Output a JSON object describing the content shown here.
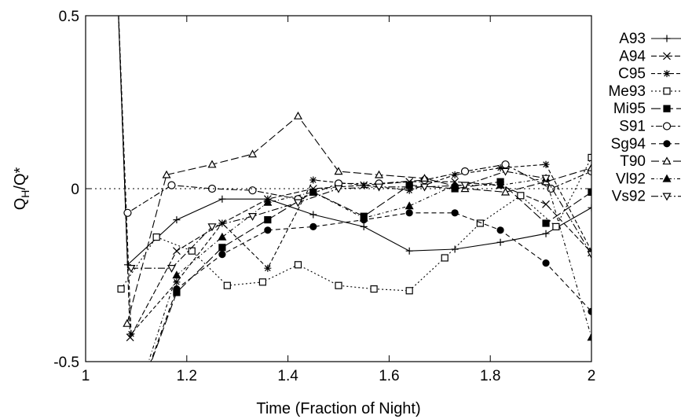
{
  "chart_data": {
    "type": "line",
    "xlabel": "Time (Fraction of Night)",
    "ylabel_main": "Q",
    "ylabel_sub": "H",
    "ylabel_rest": "/Q*",
    "xlim": [
      1,
      2
    ],
    "ylim": [
      -0.5,
      0.5
    ],
    "x_ticks": [
      1,
      1.2,
      1.4,
      1.6,
      1.8,
      2
    ],
    "x_tick_labels": [
      "1",
      "1.2",
      "1.4",
      "1.6",
      "1.8",
      "2"
    ],
    "y_ticks": [
      -0.5,
      0,
      0.5
    ],
    "y_tick_labels": [
      "-0.5",
      "0",
      "0.5"
    ],
    "reference_line_y": 0,
    "legend_position": "right",
    "grid": false,
    "series": [
      {
        "name": "A93",
        "marker": "plus",
        "dash": "",
        "points": [
          [
            1.06,
            0.7
          ],
          [
            1.083,
            -0.22
          ],
          [
            1.18,
            -0.09
          ],
          [
            1.27,
            -0.03
          ],
          [
            1.36,
            -0.03
          ],
          [
            1.45,
            -0.075
          ],
          [
            1.55,
            -0.11
          ],
          [
            1.64,
            -0.18
          ],
          [
            1.73,
            -0.175
          ],
          [
            1.82,
            -0.155
          ],
          [
            1.91,
            -0.13
          ],
          [
            2.0,
            -0.055
          ]
        ]
      },
      {
        "name": "A94",
        "marker": "x",
        "dash": "7 3",
        "points": [
          [
            1.06,
            0.7
          ],
          [
            1.088,
            -0.43
          ],
          [
            1.18,
            -0.18
          ],
          [
            1.27,
            -0.1
          ],
          [
            1.36,
            -0.03
          ],
          [
            1.45,
            0.0
          ],
          [
            1.55,
            0.01
          ],
          [
            1.64,
            0.02
          ],
          [
            1.73,
            0.02
          ],
          [
            1.82,
            0.01
          ],
          [
            1.91,
            -0.045
          ],
          [
            2.0,
            -0.185
          ]
        ]
      },
      {
        "name": "C95",
        "marker": "star",
        "dash": "5 3",
        "points": [
          [
            1.06,
            0.7
          ],
          [
            1.09,
            -0.42
          ],
          [
            1.18,
            -0.27
          ],
          [
            1.27,
            -0.1
          ],
          [
            1.36,
            -0.23
          ],
          [
            1.45,
            0.025
          ],
          [
            1.55,
            0.01
          ],
          [
            1.64,
            -0.005
          ],
          [
            1.73,
            0.04
          ],
          [
            1.82,
            0.06
          ],
          [
            1.91,
            0.07
          ],
          [
            2.0,
            -0.18
          ]
        ]
      },
      {
        "name": "Me93",
        "marker": "square-open",
        "dash": "2 3",
        "points": [
          [
            1.07,
            -0.29
          ],
          [
            1.14,
            -0.14
          ],
          [
            1.21,
            -0.18
          ],
          [
            1.28,
            -0.28
          ],
          [
            1.35,
            -0.27
          ],
          [
            1.42,
            -0.22
          ],
          [
            1.5,
            -0.28
          ],
          [
            1.57,
            -0.29
          ],
          [
            1.64,
            -0.295
          ],
          [
            1.71,
            -0.2
          ],
          [
            1.78,
            -0.1
          ],
          [
            1.86,
            -0.02
          ],
          [
            1.93,
            -0.11
          ],
          [
            2.0,
            0.09
          ]
        ]
      },
      {
        "name": "Mi95",
        "marker": "square-filled",
        "dash": "12 4",
        "points": [
          [
            1.08,
            -0.7
          ],
          [
            1.18,
            -0.3
          ],
          [
            1.27,
            -0.17
          ],
          [
            1.36,
            -0.09
          ],
          [
            1.45,
            -0.01
          ],
          [
            1.55,
            -0.08
          ],
          [
            1.64,
            0.01
          ],
          [
            1.73,
            0.0
          ],
          [
            1.82,
            0.02
          ],
          [
            1.91,
            -0.1
          ],
          [
            2.0,
            -0.01
          ]
        ]
      },
      {
        "name": "S91",
        "marker": "circle-open",
        "dash": "3 3 8 3",
        "points": [
          [
            1.083,
            -0.07
          ],
          [
            1.17,
            0.01
          ],
          [
            1.25,
            0.0
          ],
          [
            1.33,
            -0.005
          ],
          [
            1.42,
            -0.03
          ],
          [
            1.5,
            0.015
          ],
          [
            1.58,
            0.015
          ],
          [
            1.67,
            0.025
          ],
          [
            1.75,
            0.05
          ],
          [
            1.83,
            0.07
          ],
          [
            1.92,
            0.0
          ],
          [
            2.0,
            0.05
          ]
        ]
      },
      {
        "name": "Sg94",
        "marker": "circle-filled",
        "dash": "6 4",
        "points": [
          [
            1.08,
            -0.7
          ],
          [
            1.18,
            -0.29
          ],
          [
            1.27,
            -0.19
          ],
          [
            1.36,
            -0.12
          ],
          [
            1.45,
            -0.11
          ],
          [
            1.55,
            -0.09
          ],
          [
            1.64,
            -0.07
          ],
          [
            1.73,
            -0.07
          ],
          [
            1.82,
            -0.12
          ],
          [
            1.91,
            -0.215
          ],
          [
            2.0,
            -0.355
          ]
        ]
      },
      {
        "name": "T90",
        "marker": "triangle-open",
        "dash": "10 4",
        "points": [
          [
            1.082,
            -0.39
          ],
          [
            1.16,
            0.04
          ],
          [
            1.25,
            0.07
          ],
          [
            1.33,
            0.1
          ],
          [
            1.42,
            0.21
          ],
          [
            1.5,
            0.05
          ],
          [
            1.58,
            0.04
          ],
          [
            1.67,
            0.03
          ],
          [
            1.75,
            0.0
          ],
          [
            1.83,
            -0.01
          ],
          [
            1.91,
            0.02
          ],
          [
            2.0,
            0.06
          ]
        ]
      },
      {
        "name": "Vl92",
        "marker": "triangle-filled",
        "dash": "4 3 1 3",
        "points": [
          [
            1.08,
            -0.7
          ],
          [
            1.18,
            -0.25
          ],
          [
            1.27,
            -0.14
          ],
          [
            1.36,
            -0.04
          ],
          [
            1.45,
            -0.01
          ],
          [
            1.55,
            -0.085
          ],
          [
            1.64,
            -0.05
          ],
          [
            1.73,
            0.01
          ],
          [
            1.82,
            0.01
          ],
          [
            1.91,
            0.03
          ],
          [
            2.0,
            -0.43
          ]
        ]
      },
      {
        "name": "Vs92",
        "marker": "triangle-down",
        "dash": "9 3 2 3",
        "points": [
          [
            1.09,
            -0.23
          ],
          [
            1.17,
            -0.23
          ],
          [
            1.25,
            -0.11
          ],
          [
            1.33,
            -0.08
          ],
          [
            1.42,
            -0.04
          ],
          [
            1.5,
            0.0
          ],
          [
            1.58,
            0.005
          ],
          [
            1.67,
            0.005
          ],
          [
            1.75,
            0.01
          ],
          [
            1.83,
            0.05
          ],
          [
            1.91,
            0.03
          ],
          [
            2.0,
            -0.19
          ]
        ]
      }
    ]
  }
}
